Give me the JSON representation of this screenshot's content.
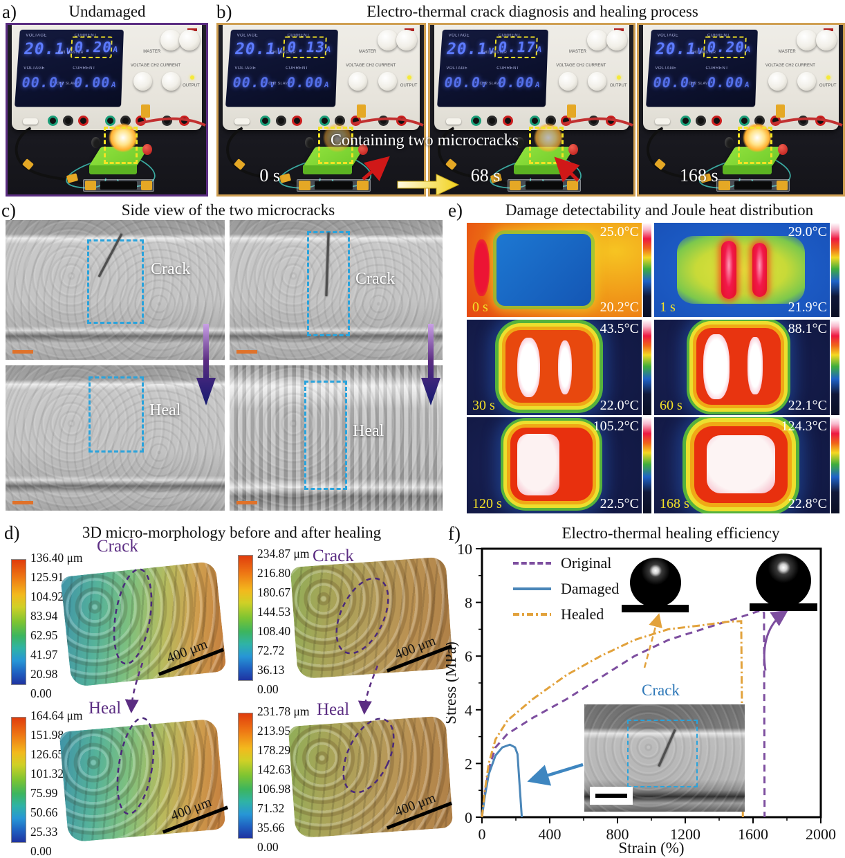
{
  "figure": {
    "panel_a": {
      "label": "a)",
      "title": "Undamaged",
      "frame": {
        "time": "",
        "current": "0.20"
      }
    },
    "panel_b": {
      "label": "b)",
      "title": "Electro-thermal crack diagnosis and healing process",
      "annotation": "Containing two microcracks",
      "frames": [
        {
          "time": "0 s",
          "current": "0.13"
        },
        {
          "time": "68 s",
          "current": "0.17"
        },
        {
          "time": "168 s",
          "current": "0.20"
        }
      ]
    },
    "panel_c": {
      "label": "c)",
      "title": "Side view of the two microcracks",
      "tags": [
        "Crack",
        "Crack",
        "Heal",
        "Heal"
      ]
    },
    "panel_d": {
      "label": "d)",
      "title": "3D micro-morphology before and after healing",
      "maps": [
        {
          "pos": "top-left",
          "tag": "Crack",
          "scalebar": "400 μm",
          "colorbar": [
            "136.40 μm",
            "125.91",
            "104.92",
            "83.94",
            "62.95",
            "41.97",
            "20.98",
            "0.00"
          ]
        },
        {
          "pos": "top-right",
          "tag": "Crack",
          "scalebar": "400 μm",
          "colorbar": [
            "234.87 μm",
            "216.80",
            "180.67",
            "144.53",
            "108.40",
            "72.72",
            "36.13",
            "0.00"
          ]
        },
        {
          "pos": "bottom-left",
          "tag": "Heal",
          "scalebar": "400 μm",
          "colorbar": [
            "164.64 μm",
            "151.98",
            "126.65",
            "101.32",
            "75.99",
            "50.66",
            "25.33",
            "0.00"
          ]
        },
        {
          "pos": "bottom-right",
          "tag": "Heal",
          "scalebar": "400 μm",
          "colorbar": [
            "231.78 μm",
            "213.95",
            "178.29",
            "142.63",
            "106.98",
            "71.32",
            "35.66",
            "0.00"
          ]
        }
      ]
    },
    "panel_e": {
      "label": "e)",
      "title": "Damage detectability and Joule heat distribution",
      "frames": [
        {
          "time": "0 s",
          "t_max": "25.0°C",
          "t_min": "20.2°C"
        },
        {
          "time": "1 s",
          "t_max": "29.0°C",
          "t_min": "21.9°C"
        },
        {
          "time": "30 s",
          "t_max": "43.5°C",
          "t_min": "22.0°C"
        },
        {
          "time": "60 s",
          "t_max": "88.1°C",
          "t_min": "22.1°C"
        },
        {
          "time": "120 s",
          "t_max": "105.2°C",
          "t_min": "22.5°C"
        },
        {
          "time": "168 s",
          "t_max": "124.3°C",
          "t_min": "22.8°C"
        }
      ]
    },
    "panel_f": {
      "label": "f)",
      "title": "Electro-thermal healing efficiency",
      "inset_label": "Crack"
    }
  },
  "psu": {
    "voltage_label": "VOLTAGE",
    "current_label": "CURRENT",
    "master_voltage": "20.1",
    "slave_voltage": "00.0",
    "slave_current": "0.00",
    "volt_unit": "V",
    "amp_unit": "A",
    "ch1": "CH1 MASTER",
    "ch2": "CH2 SLAVE",
    "master": "MASTER",
    "controls_row": "VOLTAGE  CH2  CURRENT",
    "output": "OUTPUT"
  },
  "colors": {
    "panel_a_border": "#5b2d82",
    "panel_b_border": "#cf9f52",
    "crack_box_blue": "#29a3dc",
    "scalebar_orange": "#e0722a",
    "annotation_purple": "#5b2d82",
    "inset_label_blue": "#2e78b8",
    "original": "#7d4e9f",
    "damaged": "#4a86b8",
    "healed": "#e2a23c"
  },
  "chart_data": {
    "type": "line",
    "title": "Electro-thermal healing efficiency",
    "xlabel": "Strain (%)",
    "ylabel": "Stress (MPa)",
    "xlim": [
      0,
      2000
    ],
    "ylim": [
      0,
      10
    ],
    "xticks": [
      0,
      400,
      800,
      1200,
      1600,
      2000
    ],
    "yticks": [
      0,
      2,
      4,
      6,
      8,
      10
    ],
    "grid": false,
    "legend_position": "top-left",
    "series": [
      {
        "name": "Original",
        "color": "#7d4e9f",
        "style": "dashed",
        "points": [
          [
            0,
            0
          ],
          [
            15,
            0.8
          ],
          [
            40,
            1.8
          ],
          [
            80,
            2.6
          ],
          [
            150,
            3.1
          ],
          [
            300,
            3.7
          ],
          [
            500,
            4.4
          ],
          [
            700,
            5.2
          ],
          [
            900,
            6.0
          ],
          [
            1100,
            6.6
          ],
          [
            1300,
            7.0
          ],
          [
            1500,
            7.4
          ],
          [
            1620,
            7.65
          ],
          [
            1655,
            7.7
          ],
          [
            1665,
            7.6
          ],
          [
            1668,
            0
          ]
        ]
      },
      {
        "name": "Damaged",
        "color": "#4a86b8",
        "style": "solid",
        "points": [
          [
            0,
            0
          ],
          [
            15,
            0.7
          ],
          [
            40,
            1.6
          ],
          [
            80,
            2.3
          ],
          [
            120,
            2.6
          ],
          [
            165,
            2.7
          ],
          [
            195,
            2.6
          ],
          [
            210,
            2.35
          ],
          [
            222,
            1.2
          ],
          [
            235,
            0
          ]
        ]
      },
      {
        "name": "Healed",
        "color": "#e2a23c",
        "style": "dashdot",
        "points": [
          [
            0,
            0
          ],
          [
            15,
            0.9
          ],
          [
            40,
            2.0
          ],
          [
            80,
            2.9
          ],
          [
            150,
            3.6
          ],
          [
            300,
            4.4
          ],
          [
            500,
            5.3
          ],
          [
            700,
            6.0
          ],
          [
            900,
            6.6
          ],
          [
            1100,
            7.0
          ],
          [
            1300,
            7.15
          ],
          [
            1450,
            7.28
          ],
          [
            1530,
            7.3
          ],
          [
            1540,
            0
          ]
        ]
      }
    ]
  }
}
